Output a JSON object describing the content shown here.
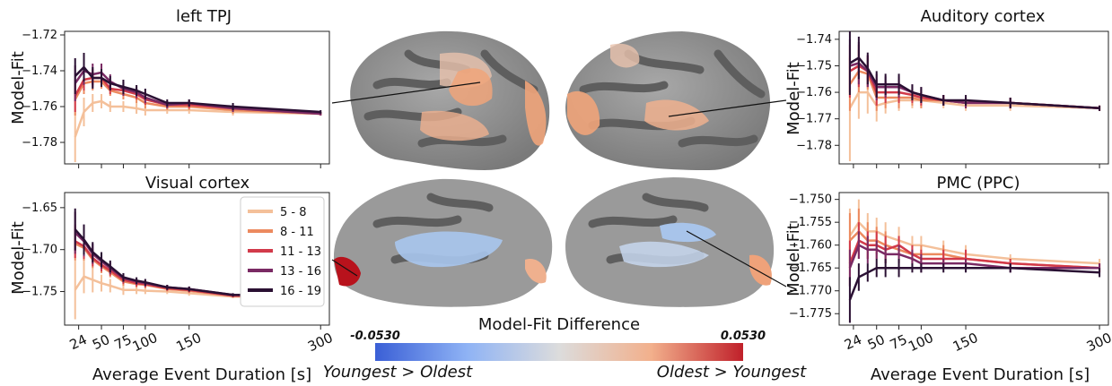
{
  "chart_data": [
    {
      "type": "line",
      "title": "left TPJ",
      "ylabel": "Model-Fit",
      "xlabel": "",
      "x": [
        20,
        30,
        40,
        50,
        60,
        75,
        90,
        100,
        125,
        150,
        200,
        300
      ],
      "xticks": [
        24,
        50,
        75,
        100,
        150,
        300
      ],
      "xlim": [
        8,
        310
      ],
      "ylim": [
        -1.792,
        -1.718
      ],
      "yticks": [
        -1.72,
        -1.74,
        -1.76,
        -1.78
      ],
      "ytick_labels": [
        "−1.72",
        "−1.74",
        "−1.76",
        "−1.78"
      ],
      "series": [
        {
          "name": "5 - 8",
          "values": [
            -1.777,
            -1.763,
            -1.758,
            -1.757,
            -1.76,
            -1.76,
            -1.761,
            -1.762,
            -1.762,
            -1.762,
            -1.763,
            -1.764
          ],
          "err": [
            0.014,
            0.008,
            0.005,
            0.004,
            0.003,
            0.003,
            0.003,
            0.003,
            0.002,
            0.002,
            0.002,
            0.001
          ]
        },
        {
          "name": "8 - 11",
          "values": [
            -1.756,
            -1.747,
            -1.746,
            -1.746,
            -1.751,
            -1.753,
            -1.755,
            -1.758,
            -1.76,
            -1.76,
            -1.762,
            -1.764
          ],
          "err": [
            0.009,
            0.006,
            0.005,
            0.004,
            0.003,
            0.003,
            0.003,
            0.003,
            0.002,
            0.002,
            0.002,
            0.001
          ]
        },
        {
          "name": "11 - 13",
          "values": [
            -1.754,
            -1.745,
            -1.744,
            -1.744,
            -1.75,
            -1.751,
            -1.753,
            -1.756,
            -1.759,
            -1.759,
            -1.761,
            -1.764
          ],
          "err": [
            0.009,
            0.006,
            0.005,
            0.004,
            0.003,
            0.003,
            0.003,
            0.003,
            0.002,
            0.002,
            0.002,
            0.001
          ]
        },
        {
          "name": "13 - 16",
          "values": [
            -1.747,
            -1.74,
            -1.742,
            -1.741,
            -1.746,
            -1.75,
            -1.752,
            -1.755,
            -1.759,
            -1.758,
            -1.761,
            -1.764
          ],
          "err": [
            0.01,
            0.008,
            0.006,
            0.005,
            0.004,
            0.004,
            0.003,
            0.003,
            0.002,
            0.002,
            0.002,
            0.001
          ]
        },
        {
          "name": "16 - 19",
          "values": [
            -1.743,
            -1.738,
            -1.744,
            -1.744,
            -1.747,
            -1.749,
            -1.751,
            -1.753,
            -1.758,
            -1.758,
            -1.76,
            -1.763
          ],
          "err": [
            0.01,
            0.008,
            0.006,
            0.005,
            0.004,
            0.004,
            0.003,
            0.003,
            0.002,
            0.002,
            0.002,
            0.001
          ]
        }
      ]
    },
    {
      "type": "line",
      "title": "Visual cortex",
      "ylabel": "Model-Fit",
      "xlabel": "Average Event Duration [s]",
      "x": [
        20,
        30,
        40,
        50,
        60,
        75,
        90,
        100,
        125,
        150,
        200,
        300
      ],
      "xticks": [
        24,
        50,
        75,
        100,
        150,
        300
      ],
      "xlim": [
        8,
        310
      ],
      "ylim": [
        -1.79,
        -1.632
      ],
      "yticks": [
        -1.65,
        -1.7,
        -1.75
      ],
      "ytick_labels": [
        "−1.65",
        "−1.70",
        "−1.75"
      ],
      "legend": {
        "position": "upper-right",
        "entries": [
          "5 - 8",
          "8 - 11",
          "11 - 13",
          "13 - 16",
          "16 - 19"
        ]
      },
      "series": [
        {
          "name": "5 - 8",
          "values": [
            -1.748,
            -1.732,
            -1.736,
            -1.74,
            -1.743,
            -1.748,
            -1.748,
            -1.749,
            -1.75,
            -1.752,
            -1.756,
            -1.757
          ],
          "err": [
            0.035,
            0.02,
            0.015,
            0.01,
            0.008,
            0.006,
            0.005,
            0.004,
            0.003,
            0.003,
            0.002,
            0.002
          ]
        },
        {
          "name": "8 - 11",
          "values": [
            -1.693,
            -1.698,
            -1.712,
            -1.72,
            -1.727,
            -1.738,
            -1.741,
            -1.742,
            -1.747,
            -1.749,
            -1.755,
            -1.756
          ],
          "err": [
            0.02,
            0.015,
            0.01,
            0.008,
            0.006,
            0.005,
            0.004,
            0.004,
            0.003,
            0.003,
            0.002,
            0.002
          ]
        },
        {
          "name": "11 - 13",
          "values": [
            -1.69,
            -1.696,
            -1.71,
            -1.718,
            -1.725,
            -1.736,
            -1.74,
            -1.741,
            -1.746,
            -1.748,
            -1.755,
            -1.756
          ],
          "err": [
            0.02,
            0.015,
            0.01,
            0.008,
            0.006,
            0.005,
            0.004,
            0.004,
            0.003,
            0.003,
            0.002,
            0.002
          ]
        },
        {
          "name": "13 - 16",
          "values": [
            -1.68,
            -1.69,
            -1.705,
            -1.714,
            -1.722,
            -1.734,
            -1.738,
            -1.74,
            -1.745,
            -1.747,
            -1.754,
            -1.755
          ],
          "err": [
            0.025,
            0.018,
            0.012,
            0.009,
            0.007,
            0.005,
            0.004,
            0.004,
            0.003,
            0.003,
            0.002,
            0.002
          ]
        },
        {
          "name": "16 - 19",
          "values": [
            -1.676,
            -1.688,
            -1.703,
            -1.712,
            -1.72,
            -1.733,
            -1.737,
            -1.739,
            -1.745,
            -1.747,
            -1.754,
            -1.755
          ],
          "err": [
            0.025,
            0.018,
            0.012,
            0.009,
            0.007,
            0.005,
            0.004,
            0.004,
            0.003,
            0.003,
            0.002,
            0.002
          ]
        }
      ]
    },
    {
      "type": "line",
      "title": "Auditory cortex",
      "ylabel": "Model-Fit",
      "xlabel": "",
      "x": [
        20,
        30,
        40,
        50,
        60,
        75,
        90,
        100,
        125,
        150,
        200,
        300
      ],
      "xticks": [
        24,
        50,
        75,
        100,
        150,
        300
      ],
      "xlim": [
        8,
        310
      ],
      "ylim": [
        -1.787,
        -1.737
      ],
      "yticks": [
        -1.74,
        -1.75,
        -1.76,
        -1.77,
        -1.78
      ],
      "ytick_labels": [
        "−1.74",
        "−1.75",
        "−1.76",
        "−1.77",
        "−1.78"
      ],
      "series": [
        {
          "name": "5 - 8",
          "values": [
            -1.766,
            -1.76,
            -1.76,
            -1.765,
            -1.764,
            -1.763,
            -1.763,
            -1.763,
            -1.764,
            -1.765,
            -1.765,
            -1.766
          ],
          "err": [
            0.02,
            0.01,
            0.008,
            0.006,
            0.004,
            0.004,
            0.003,
            0.003,
            0.002,
            0.002,
            0.002,
            0.001
          ]
        },
        {
          "name": "8 - 11",
          "values": [
            -1.757,
            -1.752,
            -1.753,
            -1.762,
            -1.762,
            -1.762,
            -1.762,
            -1.763,
            -1.763,
            -1.764,
            -1.764,
            -1.766
          ],
          "err": [
            0.01,
            0.008,
            0.006,
            0.005,
            0.004,
            0.004,
            0.003,
            0.003,
            0.002,
            0.002,
            0.002,
            0.001
          ]
        },
        {
          "name": "11 - 13",
          "values": [
            -1.752,
            -1.75,
            -1.752,
            -1.76,
            -1.76,
            -1.76,
            -1.761,
            -1.762,
            -1.763,
            -1.764,
            -1.764,
            -1.766
          ],
          "err": [
            0.01,
            0.008,
            0.006,
            0.005,
            0.004,
            0.004,
            0.003,
            0.003,
            0.002,
            0.002,
            0.002,
            0.001
          ]
        },
        {
          "name": "13 - 16",
          "values": [
            -1.75,
            -1.749,
            -1.752,
            -1.758,
            -1.758,
            -1.758,
            -1.76,
            -1.761,
            -1.763,
            -1.764,
            -1.764,
            -1.766
          ],
          "err": [
            0.01,
            0.008,
            0.006,
            0.005,
            0.004,
            0.004,
            0.003,
            0.003,
            0.002,
            0.002,
            0.002,
            0.001
          ]
        },
        {
          "name": "16 - 19",
          "values": [
            -1.749,
            -1.747,
            -1.751,
            -1.757,
            -1.757,
            -1.757,
            -1.76,
            -1.761,
            -1.763,
            -1.763,
            -1.764,
            -1.766
          ],
          "err": [
            0.012,
            0.008,
            0.006,
            0.005,
            0.004,
            0.004,
            0.003,
            0.003,
            0.002,
            0.002,
            0.002,
            0.001
          ]
        }
      ]
    },
    {
      "type": "line",
      "title": "PMC (PPC)",
      "ylabel": "Model-Fit",
      "xlabel": "Average Event Duration [s]",
      "x": [
        20,
        30,
        40,
        50,
        60,
        75,
        90,
        100,
        125,
        150,
        200,
        300
      ],
      "xticks": [
        24,
        50,
        75,
        100,
        150,
        300
      ],
      "xlim": [
        8,
        310
      ],
      "ylim": [
        -1.7775,
        -1.7485
      ],
      "yticks": [
        -1.75,
        -1.755,
        -1.76,
        -1.765,
        -1.77,
        -1.775
      ],
      "ytick_labels": [
        "−1.750",
        "−1.755",
        "−1.760",
        "−1.765",
        "−1.770",
        "−1.775"
      ],
      "series": [
        {
          "name": "5 - 8",
          "values": [
            -1.758,
            -1.755,
            -1.757,
            -1.757,
            -1.758,
            -1.759,
            -1.76,
            -1.76,
            -1.761,
            -1.762,
            -1.763,
            -1.764
          ],
          "err": [
            0.006,
            0.005,
            0.004,
            0.003,
            0.003,
            0.003,
            0.002,
            0.002,
            0.002,
            0.002,
            0.001,
            0.001
          ]
        },
        {
          "name": "8 - 11",
          "values": [
            -1.759,
            -1.757,
            -1.759,
            -1.759,
            -1.76,
            -1.761,
            -1.762,
            -1.762,
            -1.762,
            -1.763,
            -1.764,
            -1.765
          ],
          "err": [
            0.006,
            0.005,
            0.004,
            0.003,
            0.003,
            0.003,
            0.002,
            0.002,
            0.002,
            0.002,
            0.001,
            0.001
          ]
        },
        {
          "name": "11 - 13",
          "values": [
            -1.764,
            -1.759,
            -1.76,
            -1.76,
            -1.761,
            -1.76,
            -1.762,
            -1.763,
            -1.763,
            -1.763,
            -1.764,
            -1.765
          ],
          "err": [
            0.005,
            0.004,
            0.003,
            0.003,
            0.003,
            0.002,
            0.002,
            0.002,
            0.002,
            0.002,
            0.001,
            0.001
          ]
        },
        {
          "name": "13 - 16",
          "values": [
            -1.765,
            -1.76,
            -1.761,
            -1.761,
            -1.762,
            -1.762,
            -1.763,
            -1.764,
            -1.764,
            -1.764,
            -1.765,
            -1.765
          ],
          "err": [
            0.004,
            0.003,
            0.003,
            0.002,
            0.002,
            0.002,
            0.002,
            0.002,
            0.001,
            0.001,
            0.001,
            0.001
          ]
        },
        {
          "name": "16 - 19",
          "values": [
            -1.772,
            -1.767,
            -1.766,
            -1.765,
            -1.765,
            -1.765,
            -1.765,
            -1.765,
            -1.765,
            -1.765,
            -1.765,
            -1.766
          ],
          "err": [
            0.005,
            0.003,
            0.002,
            0.002,
            0.002,
            0.002,
            0.001,
            0.001,
            0.001,
            0.001,
            0.001,
            0.001
          ]
        }
      ]
    }
  ],
  "series_colors": [
    "#f4c09a",
    "#ec8a5f",
    "#d23a4a",
    "#7a2a64",
    "#2a1033"
  ],
  "colorbar": {
    "title": "Model-Fit Difference",
    "min_label": "-0.0530",
    "max_label": "0.0530",
    "left_label": "Youngest > Oldest",
    "right_label": "Oldest > Youngest",
    "colors": [
      "#3a5fd6",
      "#8fb3f5",
      "#dcdcdc",
      "#f2b08c",
      "#c0202a"
    ]
  },
  "brain_colors": {
    "gyrus": "#9a9a9a",
    "sulcus": "#5e5e5e",
    "warm": "#f0a47a",
    "cool": "#a9c6ee",
    "hot": "#b8121c"
  }
}
